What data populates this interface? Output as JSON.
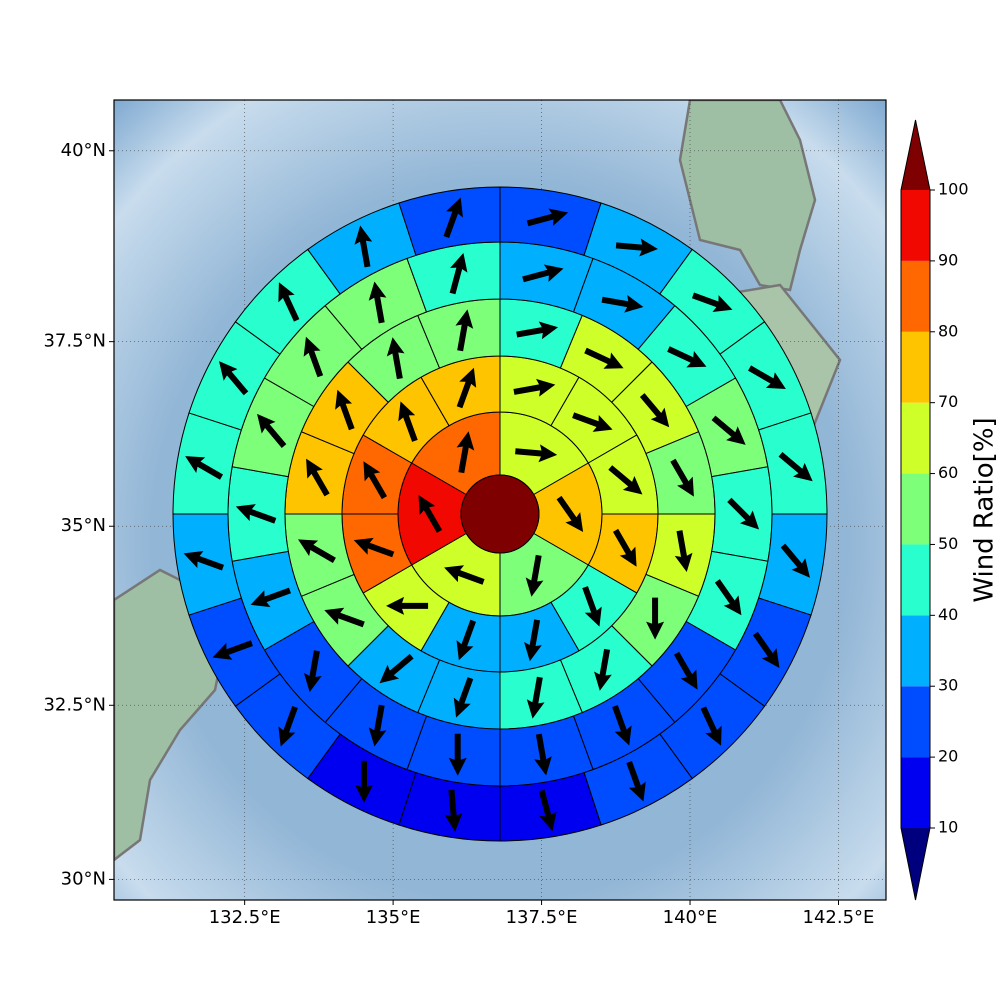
{
  "chart_data": {
    "type": "polar_wind",
    "projection": "mercator",
    "grid": true,
    "xlim": [
      130.3,
      143.3
    ],
    "ylim": [
      29.7,
      40.65
    ],
    "xticks": [
      {
        "value": 132.5,
        "label": "132.5°E"
      },
      {
        "value": 135,
        "label": "135°E"
      },
      {
        "value": 137.5,
        "label": "137.5°E"
      },
      {
        "value": 140,
        "label": "140°E"
      },
      {
        "value": 142.5,
        "label": "142.5°E"
      }
    ],
    "yticks": [
      {
        "value": 30,
        "label": "30°N"
      },
      {
        "value": 32.5,
        "label": "32.5°N"
      },
      {
        "value": 35,
        "label": "35°N"
      },
      {
        "value": 37.5,
        "label": "37.5°N"
      },
      {
        "value": 40,
        "label": "40°N"
      }
    ],
    "center_value": 105,
    "rings": [
      {
        "values": [
          65,
          75,
          55,
          65,
          95,
          85
        ],
        "directions": [
          95,
          145,
          190,
          290,
          330,
          10
        ]
      },
      {
        "values": [
          65,
          65,
          65,
          75,
          45,
          35,
          35,
          65,
          85,
          85,
          75,
          75
        ],
        "directions": [
          80,
          110,
          130,
          150,
          160,
          190,
          200,
          270,
          290,
          330,
          340,
          20
        ]
      },
      {
        "values": [
          45,
          65,
          65,
          55,
          65,
          55,
          45,
          45,
          35,
          35,
          55,
          55,
          75,
          75,
          55,
          55
        ],
        "directions": [
          80,
          115,
          140,
          150,
          170,
          180,
          190,
          190,
          200,
          230,
          290,
          300,
          330,
          340,
          350,
          10
        ]
      },
      {
        "values": [
          35,
          35,
          45,
          55,
          45,
          45,
          25,
          25,
          25,
          25,
          25,
          25,
          35,
          45,
          55,
          55,
          55,
          45
        ],
        "directions": [
          75,
          100,
          115,
          130,
          135,
          145,
          150,
          160,
          170,
          180,
          190,
          190,
          250,
          290,
          320,
          340,
          350,
          15
        ]
      },
      {
        "values": [
          25,
          35,
          45,
          45,
          45,
          35,
          25,
          25,
          25,
          15,
          15,
          15,
          25,
          25,
          35,
          45,
          45,
          45,
          35,
          25
        ],
        "directions": [
          75,
          95,
          110,
          120,
          130,
          140,
          145,
          155,
          160,
          165,
          175,
          180,
          200,
          250,
          290,
          300,
          320,
          335,
          350,
          20
        ]
      }
    ],
    "colorbar": {
      "label": "Wind Ratio[%]",
      "bounds": [
        10,
        20,
        30,
        40,
        50,
        60,
        70,
        80,
        90,
        100
      ],
      "colors": [
        "#00007f",
        "#0000f1",
        "#004cff",
        "#00b0ff",
        "#29ffce",
        "#7dff7a",
        "#ceff29",
        "#ffc400",
        "#ff6800",
        "#f10800",
        "#7f0000"
      ],
      "extend": "both"
    }
  }
}
